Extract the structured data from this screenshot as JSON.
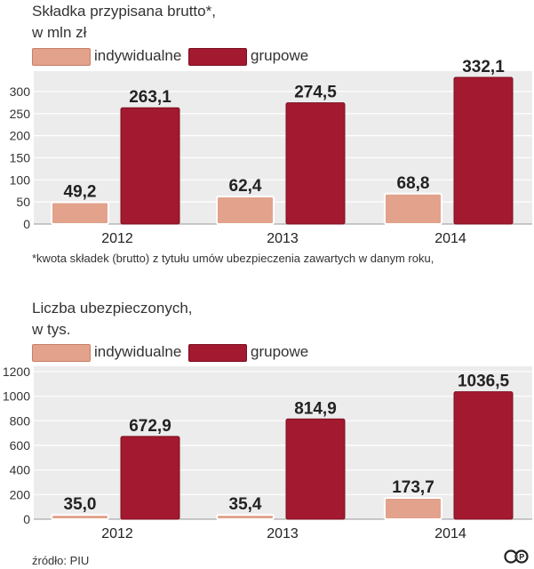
{
  "colors": {
    "individual": "#e2a28c",
    "individual_stroke": "#c97f67",
    "group": "#a3192f",
    "group_stroke": "#7c0f21",
    "panel": "#ececec",
    "grid": "#ffffff"
  },
  "chart_data": [
    {
      "type": "bar",
      "title": "Składka przypisana brutto*,",
      "subtitle": "w mln zł",
      "categories": [
        "2012",
        "2013",
        "2014"
      ],
      "series": [
        {
          "name": "indywidualne",
          "values": [
            49.2,
            62.4,
            68.8
          ],
          "labels": [
            "49,2",
            "62,4",
            "68,8"
          ]
        },
        {
          "name": "grupowe",
          "values": [
            263.1,
            274.5,
            332.1
          ],
          "labels": [
            "263,1",
            "274,5",
            "332,1"
          ]
        }
      ],
      "yticks": [
        0,
        50,
        100,
        150,
        200,
        250,
        300
      ],
      "ylim": [
        0,
        330
      ],
      "legend": "top",
      "grid": true,
      "footnote": "*kwota składek (brutto) z tytułu umów ubezpieczenia zawartych w danym roku,"
    },
    {
      "type": "bar",
      "title": "Liczba ubezpieczonych,",
      "subtitle": "w tys.",
      "categories": [
        "2012",
        "2013",
        "2014"
      ],
      "series": [
        {
          "name": "indywidualne",
          "values": [
            35.0,
            35.4,
            173.7
          ],
          "labels": [
            "35,0",
            "35,4",
            "173,7"
          ]
        },
        {
          "name": "grupowe",
          "values": [
            672.9,
            814.9,
            1036.5
          ],
          "labels": [
            "672,9",
            "814,9",
            "1036,5"
          ]
        }
      ],
      "yticks": [
        0,
        200,
        400,
        600,
        800,
        1000,
        1200
      ],
      "ylim": [
        0,
        1200
      ],
      "legend": "top",
      "grid": true
    }
  ],
  "source": "źródło: PIU",
  "logo": "cp-logo-icon"
}
